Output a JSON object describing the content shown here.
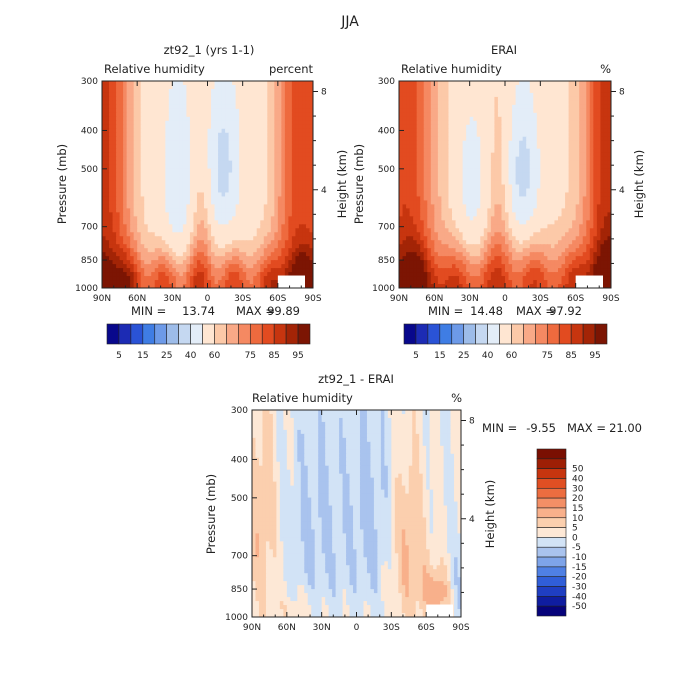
{
  "figure_title": "JJA",
  "colors": {
    "full_levels": [
      "#08088c",
      "#1c2bb4",
      "#2a53d6",
      "#3f7de4",
      "#6d9ae8",
      "#9dbce9",
      "#c5d8f1",
      "#e3edf8",
      "#ffe6d2",
      "#fcc9a8",
      "#f9a987",
      "#f58962",
      "#ee6a3e",
      "#e24b20",
      "#c7350f",
      "#a32406",
      "#7c1503"
    ],
    "diff_levels": [
      "#06037a",
      "#0f1da0",
      "#1f3ec2",
      "#305ed8",
      "#4f80e4",
      "#7ea4e9",
      "#a9c3ee",
      "#d2e3f6",
      "#fde8d6",
      "#fbcfae",
      "#f8b08b",
      "#f38f66",
      "#ec6d40",
      "#e04f23",
      "#c7350f",
      "#9e1f05",
      "#7a0f02"
    ]
  },
  "chart_data": [
    {
      "type": "heatmap",
      "name": "model",
      "title": "zt92_1 (yrs 1-1)",
      "left_label": "Relative humidity",
      "right_label": "percent",
      "xlabel": "",
      "ylabel": "Pressure (mb)",
      "y2label": "Height (km)",
      "xticks": [
        "90N",
        "60N",
        "30N",
        "0",
        "30S",
        "60S",
        "90S"
      ],
      "yticks": [
        "300",
        "400",
        "500",
        "700",
        "850",
        "1000"
      ],
      "y2ticks": [
        "8",
        "4"
      ],
      "stats": {
        "min_label": "MIN =",
        "min": "13.74",
        "max_label": "MAX =",
        "max": "99.89"
      },
      "colorbar_labels": [
        "5",
        "15",
        "25",
        "40",
        "60",
        "75",
        "85",
        "95"
      ],
      "contour_levels": [
        5,
        10,
        15,
        20,
        25,
        30,
        40,
        50,
        60,
        65,
        70,
        75,
        80,
        85,
        90,
        95
      ],
      "xlim": [
        -90,
        90
      ],
      "ylim": [
        1000,
        300
      ]
    },
    {
      "type": "heatmap",
      "name": "obs",
      "title": "ERAI",
      "left_label": "Relative humidity",
      "right_label": "%",
      "xlabel": "",
      "ylabel": "Pressure (mb)",
      "y2label": "Height (km)",
      "xticks": [
        "90N",
        "60N",
        "30N",
        "0",
        "30S",
        "60S",
        "90S"
      ],
      "yticks": [
        "300",
        "400",
        "500",
        "700",
        "850",
        "1000"
      ],
      "y2ticks": [
        "8",
        "4"
      ],
      "stats": {
        "min_label": "MIN =",
        "min": "14.48",
        "max_label": "MAX =",
        "max": "97.92"
      },
      "colorbar_labels": [
        "5",
        "15",
        "25",
        "40",
        "60",
        "75",
        "85",
        "95"
      ],
      "contour_levels": [
        5,
        10,
        15,
        20,
        25,
        30,
        40,
        50,
        60,
        65,
        70,
        75,
        80,
        85,
        90,
        95
      ],
      "xlim": [
        -90,
        90
      ],
      "ylim": [
        1000,
        300
      ]
    },
    {
      "type": "heatmap",
      "name": "diff",
      "title": "zt92_1 - ERAI",
      "left_label": "Relative humidity",
      "right_label": "%",
      "xlabel": "",
      "ylabel": "Pressure (mb)",
      "y2label": "Height (km)",
      "xticks": [
        "90N",
        "60N",
        "30N",
        "0",
        "30S",
        "60S",
        "90S"
      ],
      "yticks": [
        "300",
        "400",
        "500",
        "700",
        "850",
        "1000"
      ],
      "y2ticks": [
        "8",
        "4"
      ],
      "stats": {
        "min_label": "MIN =",
        "min": "-9.55",
        "max_label": "MAX =",
        "max": "21.00"
      },
      "colorbar_labels": [
        "50",
        "40",
        "30",
        "20",
        "15",
        "10",
        "5",
        "0",
        "-5",
        "-10",
        "-15",
        "-20",
        "-30",
        "-40",
        "-50"
      ],
      "contour_levels": [
        -50,
        -40,
        -30,
        -20,
        -15,
        -10,
        -5,
        0,
        5,
        10,
        15,
        20,
        30,
        40,
        50
      ],
      "xlim": [
        -90,
        90
      ],
      "ylim": [
        1000,
        300
      ]
    }
  ]
}
